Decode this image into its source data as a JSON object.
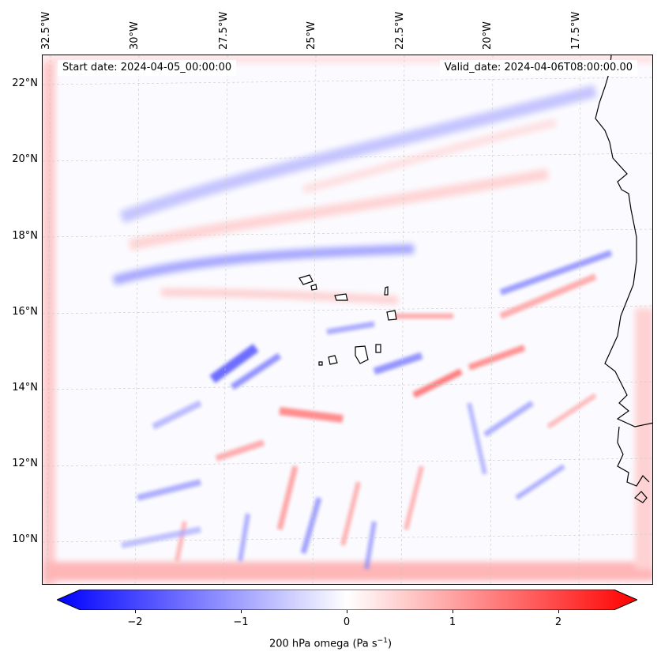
{
  "map": {
    "start_date": "Start date: 2024-04-05_00:00:00",
    "valid_date": "Valid_date: 2024-04-06T08:00:00.00",
    "longitude_labels": [
      "32.5°W",
      "30°W",
      "27.5°W",
      "25°W",
      "22.5°W",
      "20°W",
      "17.5°W"
    ],
    "latitude_labels": [
      "22°N",
      "20°N",
      "18°N",
      "16°N",
      "14°N",
      "12°N",
      "10°N"
    ],
    "colors": {
      "negative": "#0000ff",
      "zero": "#ffffff",
      "positive": "#ff0000",
      "coast": "#000000"
    }
  },
  "colorbar": {
    "label_text": "200 hPa omega (Pa s",
    "label_exponent": "−1",
    "label_close": ")",
    "ticks": [
      "−2",
      "−1",
      "0",
      "1",
      "2"
    ],
    "range": [
      -2.6,
      2.6
    ]
  }
}
